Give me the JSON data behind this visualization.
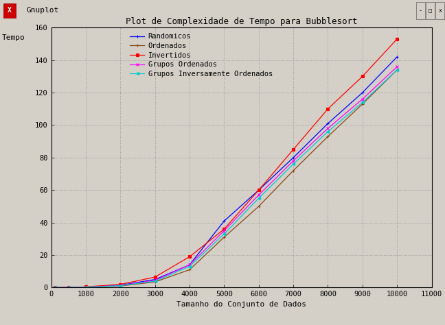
{
  "title": "Plot de Complexidade de Tempo para Bubblesort",
  "xlabel": "Tamanho do Conjunto de Dados",
  "ylabel": "Tempo",
  "window_title": "Gnuplot",
  "titlebar_color": "#d4d0c8",
  "titlebar_text_color": "#000000",
  "border_color": "#808080",
  "outer_bg_color": "#d4d0c8",
  "plot_bg_color": "#d4d0c8",
  "xlim": [
    0,
    11000
  ],
  "ylim": [
    0,
    160
  ],
  "xticks": [
    0,
    1000,
    2000,
    3000,
    4000,
    5000,
    6000,
    7000,
    8000,
    9000,
    10000,
    11000
  ],
  "yticks": [
    0,
    20,
    40,
    60,
    80,
    100,
    120,
    140,
    160
  ],
  "series": [
    {
      "label": "Randomicos",
      "color": "#0000ff",
      "marker": "+",
      "x": [
        100,
        500,
        1000,
        2000,
        3000,
        4000,
        5000,
        6000,
        7000,
        8000,
        9000,
        10000
      ],
      "y": [
        0.0,
        0.1,
        0.3,
        1.5,
        5.0,
        14.0,
        41.0,
        60.0,
        80.0,
        101.0,
        120.0,
        142.0
      ]
    },
    {
      "label": "Ordenados",
      "color": "#8b4513",
      "marker": "+",
      "x": [
        100,
        500,
        1000,
        2000,
        3000,
        4000,
        5000,
        6000,
        7000,
        8000,
        9000,
        10000
      ],
      "y": [
        0.0,
        0.05,
        0.2,
        1.0,
        3.5,
        11.0,
        31.0,
        50.0,
        72.0,
        93.0,
        113.0,
        134.0
      ]
    },
    {
      "label": "Invertidos",
      "color": "#ff0000",
      "marker": "s",
      "x": [
        100,
        500,
        1000,
        2000,
        3000,
        4000,
        5000,
        6000,
        7000,
        8000,
        9000,
        10000
      ],
      "y": [
        0.0,
        0.1,
        0.5,
        2.0,
        6.5,
        19.0,
        36.0,
        60.0,
        85.0,
        110.0,
        130.0,
        153.0
      ]
    },
    {
      "label": "Grupos Ordenados",
      "color": "#ff00ff",
      "marker": "x",
      "x": [
        100,
        500,
        1000,
        2000,
        3000,
        4000,
        5000,
        6000,
        7000,
        8000,
        9000,
        10000
      ],
      "y": [
        0.0,
        0.08,
        0.3,
        1.3,
        4.5,
        14.0,
        35.0,
        57.0,
        78.0,
        98.0,
        116.0,
        136.0
      ]
    },
    {
      "label": "Grupos Inversamente Ordenados",
      "color": "#00cccc",
      "marker": "<",
      "x": [
        100,
        500,
        1000,
        2000,
        3000,
        4000,
        5000,
        6000,
        7000,
        8000,
        9000,
        10000
      ],
      "y": [
        0.0,
        0.08,
        0.3,
        1.2,
        4.0,
        13.0,
        33.0,
        55.0,
        76.0,
        96.0,
        114.0,
        134.0
      ]
    }
  ]
}
